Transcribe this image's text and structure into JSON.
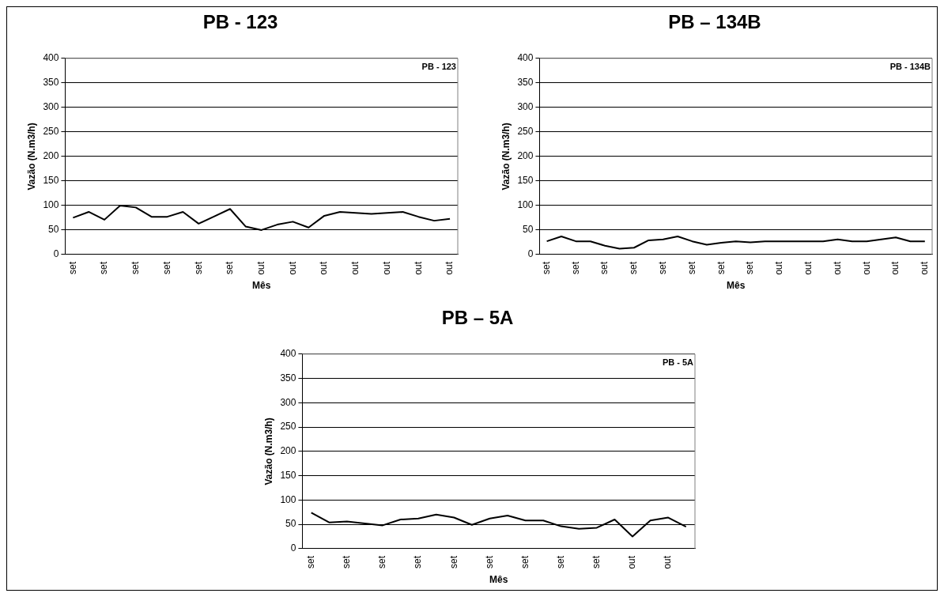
{
  "chart_data": [
    {
      "type": "line",
      "title": "PB - 123",
      "xlabel": "Mês",
      "ylabel": "Vazão (N.m3/h)",
      "categories": [
        "set",
        null,
        "set",
        null,
        "set",
        null,
        "set",
        null,
        "set",
        null,
        "set",
        null,
        "out",
        null,
        "out",
        null,
        "out",
        null,
        "out",
        null,
        "out",
        null,
        "out",
        null,
        "out"
      ],
      "series": [
        {
          "name": "PB - 123",
          "color": "#000000",
          "values": [
            75,
            87,
            71,
            100,
            96,
            77,
            77,
            87,
            63,
            78,
            93,
            57,
            50,
            61,
            67,
            55,
            79,
            87,
            85,
            83,
            85,
            87,
            77,
            69,
            73
          ]
        }
      ],
      "ylim": [
        0,
        400
      ],
      "yticks": [
        0,
        50,
        100,
        150,
        200,
        250,
        300,
        350,
        400
      ],
      "grid": "y",
      "legend": "top right",
      "marker": "none"
    },
    {
      "type": "line",
      "title": "PB – 134B",
      "xlabel": "Mês",
      "ylabel": "Vazão (N.m3/h)",
      "categories": [
        "set",
        null,
        "set",
        null,
        "set",
        null,
        "set",
        null,
        "set",
        null,
        "set",
        null,
        "set",
        null,
        "set",
        null,
        "out",
        null,
        "out",
        null,
        "out",
        null,
        "out",
        null,
        "out",
        null,
        "out"
      ],
      "series": [
        {
          "name": "PB - 134B",
          "color": "#000000",
          "values": [
            27,
            37,
            27,
            27,
            18,
            12,
            14,
            29,
            31,
            37,
            27,
            20,
            24,
            27,
            25,
            27,
            27,
            27,
            27,
            27,
            31,
            27,
            27,
            31,
            35,
            27,
            27
          ]
        }
      ],
      "ylim": [
        0,
        400
      ],
      "yticks": [
        0,
        50,
        100,
        150,
        200,
        250,
        300,
        350,
        400
      ],
      "grid": "y",
      "legend": "top right",
      "marker": "none"
    },
    {
      "type": "line",
      "title": "PB – 5A",
      "xlabel": "Mês",
      "ylabel": "Vazão (N.m3/h)",
      "categories": [
        "set",
        null,
        "set",
        null,
        "set",
        null,
        "set",
        null,
        "set",
        null,
        "set",
        null,
        "set",
        null,
        "set",
        null,
        "set",
        null,
        "out",
        null,
        "out",
        null
      ],
      "series": [
        {
          "name": "PB - 5A",
          "color": "#000000",
          "values": [
            74,
            54,
            56,
            52,
            48,
            60,
            62,
            70,
            64,
            49,
            62,
            68,
            58,
            58,
            46,
            41,
            43,
            60,
            25,
            58,
            64,
            45
          ]
        }
      ],
      "ylim": [
        0,
        400
      ],
      "yticks": [
        0,
        50,
        100,
        150,
        200,
        250,
        300,
        350,
        400
      ],
      "grid": "y",
      "legend": "top right",
      "marker": "none"
    }
  ]
}
